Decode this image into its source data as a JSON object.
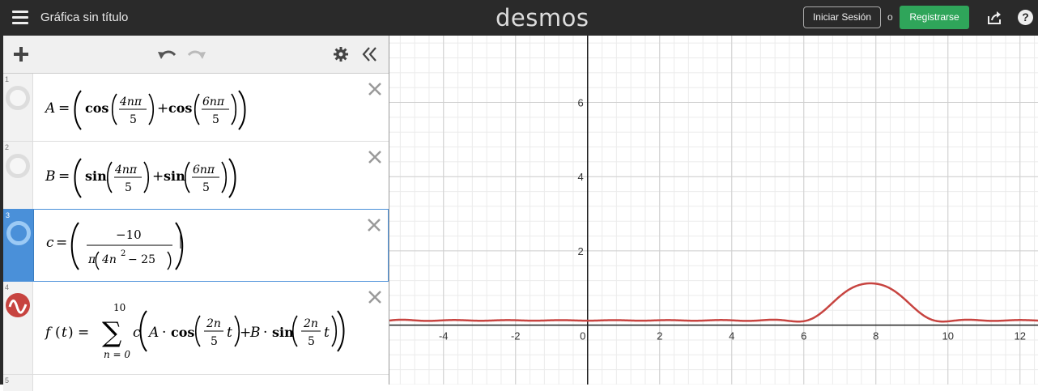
{
  "header": {
    "title": "Gráfica sin título",
    "logo": "desmos",
    "login_label": "Iniciar Sesión",
    "or_label": "o",
    "signup_label": "Registrarse",
    "help_label": "?"
  },
  "toolbar": {
    "add_icon": "plus-icon",
    "undo_icon": "undo-icon",
    "redo_icon": "redo-icon",
    "settings_icon": "gear-icon",
    "collapse_icon": "double-chevron-left-icon"
  },
  "expressions": [
    {
      "num": "1",
      "latex": "A = (cos(4nπ/5) + cos(6nπ/5))"
    },
    {
      "num": "2",
      "latex": "B = (sin(4nπ/5) + sin(6nπ/5))"
    },
    {
      "num": "3",
      "latex": "c = (−10 / (π(4n² − 25)))"
    },
    {
      "num": "4",
      "latex": "f(t) = Σ_{n=0}^{10} c(A·cos(2n/5 t) + B·sin(2n/5 t))"
    },
    {
      "num": "5",
      "latex": ""
    }
  ],
  "math_text": {
    "A": "A",
    "B": "B",
    "c": "c",
    "f": "f",
    "t": "t",
    "n": "n",
    "eq": "=",
    "cos": "cos",
    "sin": "sin",
    "plus": "+",
    "four_n_pi": "4nπ",
    "six_n_pi": "6nπ",
    "five": "5",
    "minus_ten": "−10",
    "pi": "π",
    "four_n": "4n",
    "two": "2",
    "minus_25": "− 25",
    "sum": "∑",
    "ten": "10",
    "n_eq_zero": "n = 0",
    "two_n": "2n",
    "dot": "·"
  },
  "graph": {
    "xlim": [
      -5.5,
      12.5
    ],
    "ylim": [
      -1.6,
      7.8
    ],
    "x_ticks": [
      "-4",
      "-2",
      "0",
      "2",
      "4",
      "6",
      "8",
      "10",
      "12"
    ],
    "y_ticks": [
      "2",
      "4",
      "6"
    ],
    "curve_color": "#c74440",
    "grid": true
  }
}
